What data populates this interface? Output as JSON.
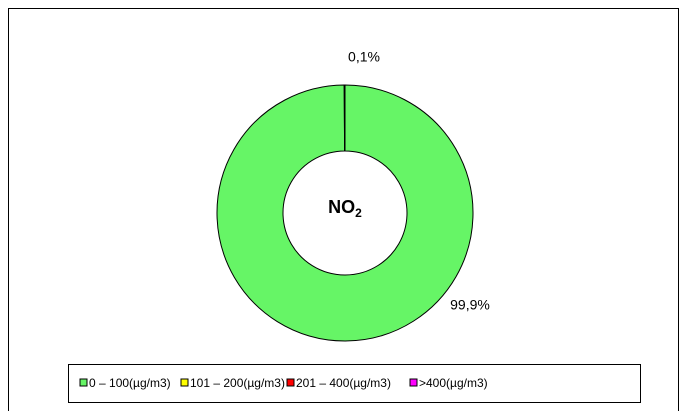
{
  "chart_data": {
    "type": "donut",
    "center_label": {
      "main": "NO",
      "sub": "2"
    },
    "categories": [
      "0 – 100(µg/m3)",
      "101 – 200(µg/m3)",
      "201 – 400(µg/m3)",
      ">400(µg/m3)"
    ],
    "colors": [
      "#66f566",
      "#ffff00",
      "#ff0000",
      "#ff00ff"
    ],
    "values": [
      99.9,
      0.1,
      0,
      0
    ],
    "value_labels": [
      "99,9%",
      "0,1%",
      null,
      null
    ],
    "legend": "bottom"
  }
}
